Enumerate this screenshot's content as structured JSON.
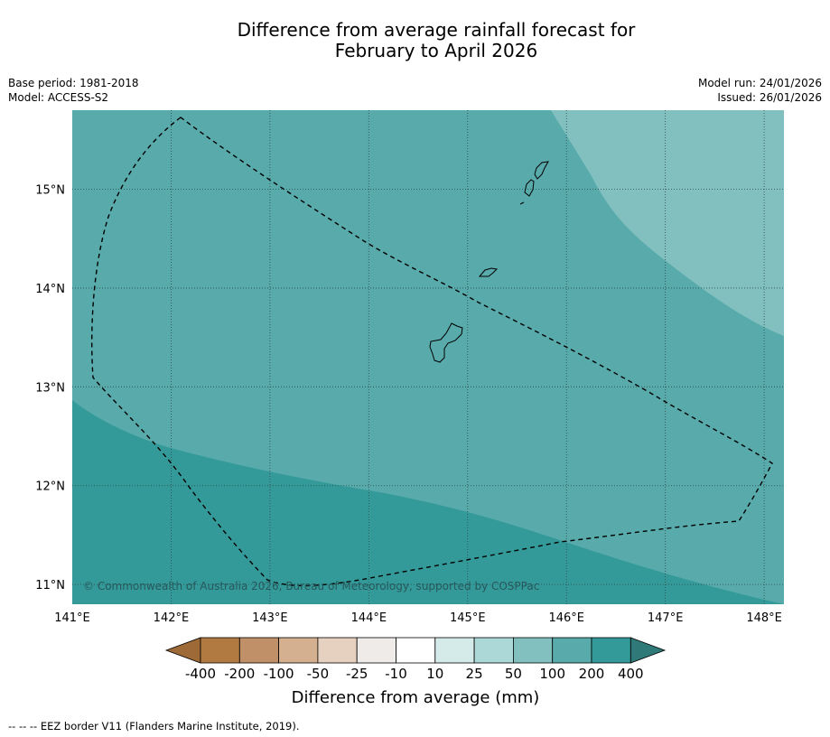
{
  "title": {
    "line1": "Difference from average rainfall forecast for",
    "line2": "February to April 2026"
  },
  "meta": {
    "base_period": "Base period: 1981-2018",
    "model": "Model: ACCESS-S2",
    "model_run": "Model run: 24/01/2026",
    "issued": "Issued: 26/01/2026"
  },
  "map": {
    "lon_ticks": [
      {
        "value": 141,
        "label": "141°E"
      },
      {
        "value": 142,
        "label": "142°E"
      },
      {
        "value": 143,
        "label": "143°E"
      },
      {
        "value": 144,
        "label": "144°E"
      },
      {
        "value": 145,
        "label": "145°E"
      },
      {
        "value": 146,
        "label": "146°E"
      },
      {
        "value": 147,
        "label": "147°E"
      },
      {
        "value": 148,
        "label": "148°E"
      }
    ],
    "lat_ticks": [
      {
        "value": 15,
        "label": "15°N"
      },
      {
        "value": 14,
        "label": "14°N"
      },
      {
        "value": 13,
        "label": "13°N"
      },
      {
        "value": 12,
        "label": "12°N"
      },
      {
        "value": 11,
        "label": "11°N"
      }
    ],
    "copyright": "© Commonwealth of Australia 2026, Bureau of Meteorology, supported by COSPPac"
  },
  "colorbar": {
    "title": "Difference from average (mm)",
    "labels": [
      "-400",
      "-200",
      "-100",
      "-50",
      "-25",
      "-10",
      "10",
      "25",
      "50",
      "100",
      "200",
      "400"
    ],
    "colors": [
      "#9e6a38",
      "#b07a40",
      "#c09068",
      "#d4b090",
      "#e6d0bf",
      "#efebe8",
      "#ffffff",
      "#d5ebea",
      "#acd9d8",
      "#82c0c0",
      "#58aaab",
      "#349a99",
      "#2f7a78"
    ]
  },
  "footnote": "--  --  -- EEZ border V11 (Flanders Marine Institute, 2019)."
}
